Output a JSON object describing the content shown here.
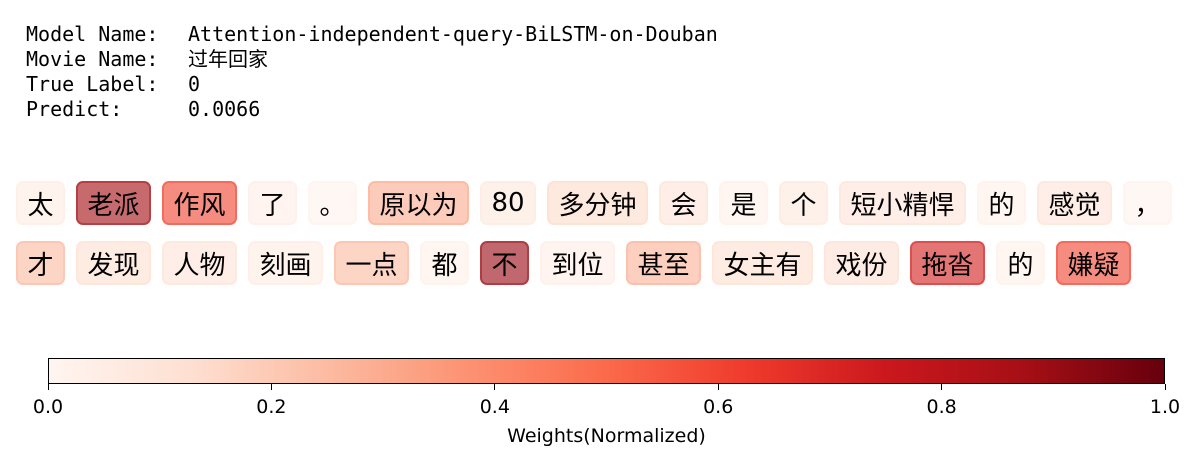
{
  "meta": {
    "rows": [
      {
        "key": "Model Name:",
        "value": "Attention-independent-query-BiLSTM-on-Douban"
      },
      {
        "key": "Movie Name:",
        "value": "过年回家"
      },
      {
        "key": "True Label:",
        "value": "0"
      },
      {
        "key": "Predict:",
        "value": "0.0066"
      }
    ]
  },
  "chart_data": {
    "type": "heatmap",
    "colormap": "Reds",
    "tokens": [
      [
        {
          "text": "太",
          "weight": 0.06
        },
        {
          "text": "老派",
          "weight": 0.88
        },
        {
          "text": "作风",
          "weight": 0.6
        },
        {
          "text": "了",
          "weight": 0.04
        },
        {
          "text": "。",
          "weight": 0.02
        },
        {
          "text": "原以为",
          "weight": 0.3
        },
        {
          "text": "80",
          "weight": 0.08
        },
        {
          "text": "多分钟",
          "weight": 0.14
        },
        {
          "text": "会",
          "weight": 0.1
        },
        {
          "text": "是",
          "weight": 0.03
        },
        {
          "text": "个",
          "weight": 0.08
        },
        {
          "text": "短小精悍",
          "weight": 0.1
        },
        {
          "text": "的",
          "weight": 0.03
        },
        {
          "text": "感觉",
          "weight": 0.1
        },
        {
          "text": "，",
          "weight": 0.02
        }
      ],
      [
        {
          "text": "才",
          "weight": 0.25
        },
        {
          "text": "发现",
          "weight": 0.13
        },
        {
          "text": "人物",
          "weight": 0.1
        },
        {
          "text": "刻画",
          "weight": 0.06
        },
        {
          "text": "一点",
          "weight": 0.25
        },
        {
          "text": "都",
          "weight": 0.03
        },
        {
          "text": "不",
          "weight": 0.9
        },
        {
          "text": "到位",
          "weight": 0.04
        },
        {
          "text": "甚至",
          "weight": 0.28
        },
        {
          "text": "女主有",
          "weight": 0.13
        },
        {
          "text": "戏份",
          "weight": 0.12
        },
        {
          "text": "拖沓",
          "weight": 0.72
        },
        {
          "text": "的",
          "weight": 0.03
        },
        {
          "text": "嫌疑",
          "weight": 0.6
        }
      ]
    ],
    "colorbar": {
      "range": [
        0.0,
        1.0
      ],
      "ticks": [
        "0.0",
        "0.2",
        "0.4",
        "0.6",
        "0.8",
        "1.0"
      ],
      "label": "Weights(Normalized)"
    }
  }
}
